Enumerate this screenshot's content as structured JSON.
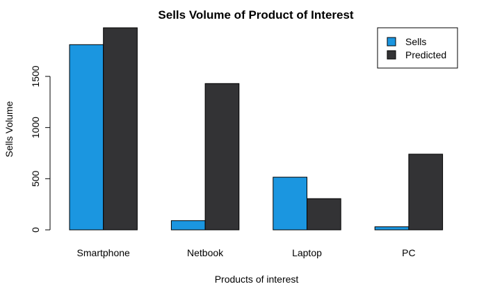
{
  "chart_data": {
    "type": "bar",
    "title": "Sells Volume of Product of Interest",
    "xlabel": "Products of interest",
    "ylabel": "Sells Volume",
    "categories": [
      "Smartphone",
      "Netbook",
      "Laptop",
      "PC"
    ],
    "series": [
      {
        "name": "Sells",
        "values": [
          1810,
          90,
          515,
          30
        ],
        "color": "#1b96e0"
      },
      {
        "name": "Predicted",
        "values": [
          1975,
          1430,
          305,
          740
        ],
        "color": "#333335"
      }
    ],
    "yticks": [
      0,
      500,
      1000,
      1500
    ],
    "ylim": [
      0,
      1975
    ],
    "legend_position": "top-right",
    "grid": false
  }
}
